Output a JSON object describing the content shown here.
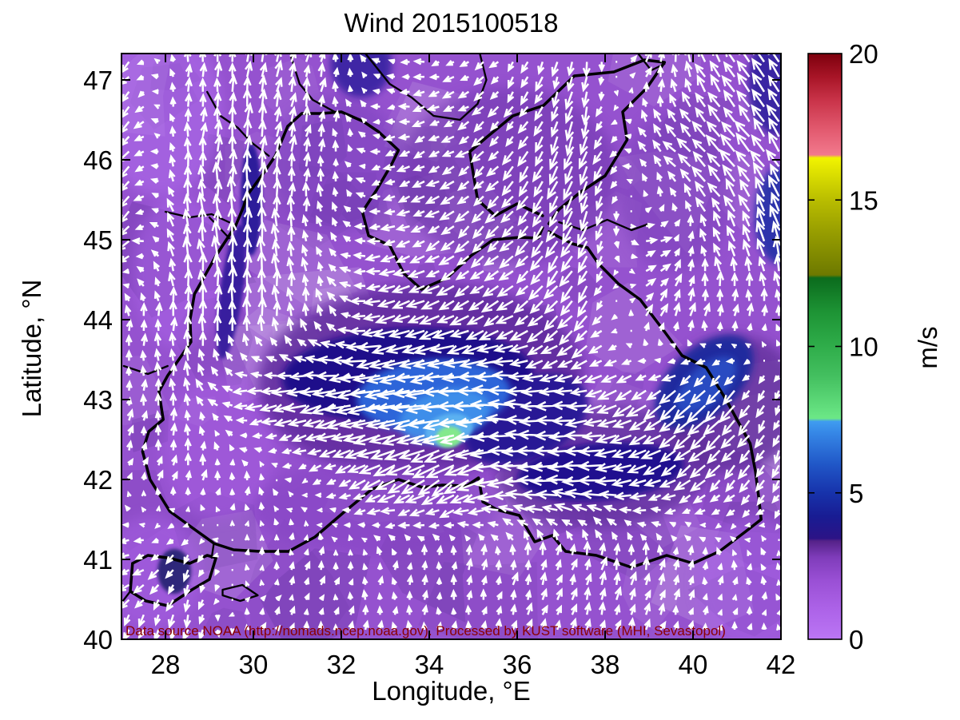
{
  "title": "Wind 2015100518",
  "axes": {
    "xlabel": "Longitude, °E",
    "ylabel": "Latitude, °N",
    "x_ticks": [
      28,
      30,
      32,
      34,
      36,
      38,
      40,
      42
    ],
    "y_ticks": [
      40,
      41,
      42,
      43,
      44,
      45,
      46,
      47
    ],
    "x_range": [
      27,
      42
    ],
    "y_range": [
      40,
      47.33
    ]
  },
  "annotation": {
    "text": "Data source NOAA (http://nomads.ncep.noaa.gov). Processed by KUST software (MHI, Sevastopol)",
    "color": "#8b0000"
  },
  "colorbar": {
    "label": "m/s",
    "ticks": [
      0,
      5,
      10,
      15,
      20
    ],
    "min": 0,
    "max": 20,
    "stops": [
      [
        0.0,
        "#bb76f5"
      ],
      [
        0.05,
        "#ad63e8"
      ],
      [
        0.1,
        "#9a50d5"
      ],
      [
        0.14,
        "#7f3cba"
      ],
      [
        0.168,
        "#542288"
      ],
      [
        0.172,
        "#2c1386"
      ],
      [
        0.21,
        "#181c93"
      ],
      [
        0.25,
        "#1733ab"
      ],
      [
        0.3,
        "#2158c8"
      ],
      [
        0.35,
        "#3585e5"
      ],
      [
        0.372,
        "#3f9cf0"
      ],
      [
        0.377,
        "#6ce887"
      ],
      [
        0.45,
        "#43bf5f"
      ],
      [
        0.5,
        "#2fad4a"
      ],
      [
        0.56,
        "#1d9334"
      ],
      [
        0.617,
        "#0b6b1d"
      ],
      [
        0.622,
        "#6d7900"
      ],
      [
        0.7,
        "#9aa000"
      ],
      [
        0.75,
        "#b9bd00"
      ],
      [
        0.8,
        "#e0e300"
      ],
      [
        0.822,
        "#f2f400"
      ],
      [
        0.827,
        "#f2798d"
      ],
      [
        0.87,
        "#e25a6f"
      ],
      [
        0.92,
        "#c93349"
      ],
      [
        0.96,
        "#a81527"
      ],
      [
        1.0,
        "#7d000d"
      ]
    ]
  },
  "chart_data": {
    "type": "quiver+filled-contour wind map, Black Sea region",
    "units": "m/s",
    "background_color": "#9552cf",
    "wind_grid": {
      "lons": [
        27,
        28.5,
        30,
        31.5,
        33,
        34.5,
        36,
        37.5,
        39,
        40.5,
        42
      ],
      "lats": [
        40.3,
        41,
        42,
        43,
        44,
        45,
        46,
        47.2
      ],
      "u": [
        [
          -1.0,
          -0.5,
          0.3,
          0.3,
          0.0,
          0.0,
          0.5,
          0.5,
          0.5,
          0.2,
          0.0
        ],
        [
          -2.0,
          -1.0,
          0.2,
          0.3,
          0.0,
          0.2,
          0.5,
          0.5,
          0.3,
          0.0,
          -0.3
        ],
        [
          0.5,
          0.5,
          0.0,
          -1.0,
          -3.0,
          -4.0,
          -4.5,
          -4.5,
          -3.0,
          -2.0,
          -1.0
        ],
        [
          0.5,
          -0.5,
          -2.5,
          -4.0,
          -5.5,
          -6.0,
          -4.0,
          -3.0,
          -3.0,
          -3.0,
          -0.5
        ],
        [
          0.0,
          0.0,
          0.0,
          -0.5,
          -3.0,
          -3.0,
          -2.5,
          -2.0,
          1.0,
          0.5,
          0.0
        ],
        [
          -2.0,
          -0.5,
          0.0,
          -0.5,
          -2.0,
          -2.0,
          -2.0,
          -1.5,
          2.0,
          -1.0,
          -1.0
        ],
        [
          -2.0,
          0.0,
          0.3,
          0.3,
          -1.5,
          -2.0,
          -1.5,
          -1.0,
          -1.5,
          -2.5,
          -2.0
        ],
        [
          -1.5,
          0.0,
          0.5,
          0.5,
          -1.0,
          -1.5,
          -1.0,
          -0.5,
          1.0,
          -1.5,
          -2.0
        ]
      ],
      "v": [
        [
          -1.5,
          -2.0,
          0.8,
          1.0,
          1.2,
          1.2,
          1.5,
          1.8,
          1.5,
          1.0,
          0.8
        ],
        [
          -0.5,
          -1.5,
          0.8,
          1.0,
          1.2,
          1.5,
          1.8,
          2.0,
          1.8,
          1.2,
          0.8
        ],
        [
          1.0,
          1.5,
          1.0,
          -0.5,
          -1.5,
          -2.5,
          -0.5,
          0.0,
          -1.0,
          -2.0,
          -2.0
        ],
        [
          1.5,
          2.0,
          -0.8,
          -1.0,
          -1.0,
          -0.5,
          0.5,
          -0.5,
          -2.0,
          -3.0,
          -1.5
        ],
        [
          1.5,
          2.5,
          3.0,
          2.0,
          -0.8,
          -1.2,
          -1.5,
          -2.5,
          2.0,
          2.0,
          1.5
        ],
        [
          -2.0,
          3.0,
          3.5,
          1.5,
          -0.5,
          -1.5,
          -2.0,
          -3.0,
          0.5,
          2.0,
          3.5
        ],
        [
          -2.5,
          2.5,
          3.0,
          2.0,
          -0.5,
          -1.0,
          -2.0,
          -3.5,
          1.5,
          2.5,
          3.0
        ],
        [
          -2.0,
          2.0,
          2.5,
          2.0,
          0.5,
          -0.5,
          -1.5,
          -2.5,
          2.0,
          2.5,
          3.0
        ]
      ]
    },
    "field_features": [
      {
        "lon": 27.9,
        "lat": 46.6,
        "rx": 1.4,
        "ry": 1.05,
        "rot": 0,
        "color": "#b26ff0",
        "opacity": 0.5,
        "blur": "lg"
      },
      {
        "lon": 28.3,
        "lat": 44.6,
        "rx": 1.05,
        "ry": 0.95,
        "rot": 0,
        "color": "#ae67ec",
        "opacity": 0.45,
        "blur": "lg"
      },
      {
        "lon": 27.7,
        "lat": 40.85,
        "rx": 1.15,
        "ry": 0.7,
        "rot": 0,
        "color": "#aa64e8",
        "opacity": 0.45,
        "blur": "lg"
      },
      {
        "lon": 41.4,
        "lat": 40.7,
        "rx": 1.3,
        "ry": 0.85,
        "rot": 0,
        "color": "#a862e8",
        "opacity": 0.5,
        "blur": "lg"
      },
      {
        "lon": 29.2,
        "lat": 42.4,
        "rx": 1.3,
        "ry": 0.9,
        "rot": 0,
        "color": "#a75fe2",
        "opacity": 0.5,
        "blur": "lg"
      },
      {
        "lon": 33.8,
        "lat": 43.25,
        "rx": 3.7,
        "ry": 1.2,
        "rot": -3,
        "color": "#5e2b9c",
        "opacity": 0.85,
        "blur": "lg"
      },
      {
        "lon": 38.0,
        "lat": 42.15,
        "rx": 2.5,
        "ry": 0.75,
        "rot": -5,
        "color": "#64309f",
        "opacity": 0.8,
        "blur": "lg"
      },
      {
        "lon": 35.8,
        "lat": 45.8,
        "rx": 2.5,
        "ry": 1.1,
        "rot": 0,
        "color": "#7138af",
        "opacity": 0.6,
        "blur": "lg"
      },
      {
        "lon": 40.9,
        "lat": 42.95,
        "rx": 1.6,
        "ry": 0.85,
        "rot": -42,
        "color": "#5e2f98",
        "opacity": 0.75,
        "blur": "lg"
      },
      {
        "lon": 31.9,
        "lat": 45.95,
        "rx": 1.5,
        "ry": 0.85,
        "rot": 0,
        "color": "#7c42be",
        "opacity": 0.55,
        "blur": "lg"
      },
      {
        "lon": 32.8,
        "lat": 41.65,
        "rx": 2.8,
        "ry": 0.6,
        "rot": 0,
        "color": "#8343c2",
        "opacity": 0.5,
        "blur": "lg"
      },
      {
        "lon": 39.6,
        "lat": 45.6,
        "rx": 1.3,
        "ry": 1.0,
        "rot": 0,
        "color": "#7940b8",
        "opacity": 0.5,
        "blur": "lg"
      },
      {
        "lon": 33.5,
        "lat": 43.3,
        "rx": 2.85,
        "ry": 0.6,
        "rot": -2,
        "color": "#1b0e8a",
        "opacity": 0.97,
        "blur": "md"
      },
      {
        "lon": 36.2,
        "lat": 42.75,
        "rx": 1.5,
        "ry": 0.5,
        "rot": -25,
        "color": "#201394",
        "opacity": 0.9,
        "blur": "md"
      },
      {
        "lon": 37.9,
        "lat": 42.1,
        "rx": 1.9,
        "ry": 0.36,
        "rot": -5,
        "color": "#1d118e",
        "opacity": 0.95,
        "blur": "md"
      },
      {
        "lon": 40.25,
        "lat": 43.22,
        "rx": 1.35,
        "ry": 0.42,
        "rot": -42,
        "color": "#1f2b9e",
        "opacity": 0.95,
        "blur": "md"
      },
      {
        "lon": 40.3,
        "lat": 43.18,
        "rx": 0.85,
        "ry": 0.23,
        "rot": -42,
        "color": "#2b50c6",
        "opacity": 0.9,
        "blur": "md"
      },
      {
        "lon": 41.95,
        "lat": 45.3,
        "rx": 0.55,
        "ry": 0.6,
        "rot": 0,
        "color": "#1e2da5",
        "opacity": 0.85,
        "blur": "md"
      },
      {
        "lon": 41.9,
        "lat": 46.95,
        "rx": 0.65,
        "ry": 0.65,
        "rot": 0,
        "color": "#2b1c9b",
        "opacity": 0.85,
        "blur": "md"
      },
      {
        "lon": 32.45,
        "lat": 47.2,
        "rx": 0.7,
        "ry": 0.42,
        "rot": 0,
        "color": "#2b1c9b",
        "opacity": 0.8,
        "blur": "md"
      },
      {
        "lon": 29.95,
        "lat": 45.5,
        "rx": 0.24,
        "ry": 0.7,
        "rot": 0,
        "color": "#241495",
        "opacity": 0.9,
        "blur": "sm"
      },
      {
        "lon": 29.5,
        "lat": 44.35,
        "rx": 0.26,
        "ry": 0.85,
        "rot": 8,
        "color": "#2a1798",
        "opacity": 0.85,
        "blur": "sm"
      },
      {
        "lon": 28.2,
        "lat": 40.85,
        "rx": 0.38,
        "ry": 0.28,
        "rot": 0,
        "color": "#232070",
        "opacity": 0.9,
        "blur": "sm"
      },
      {
        "lon": 34.1,
        "lat": 43.05,
        "rx": 1.75,
        "ry": 0.45,
        "rot": -4,
        "color": "#2d6ade",
        "opacity": 0.95,
        "blur": "md"
      },
      {
        "lon": 34.35,
        "lat": 42.8,
        "rx": 1.05,
        "ry": 0.32,
        "rot": -14,
        "color": "#4193ec",
        "opacity": 0.9,
        "blur": "md"
      },
      {
        "lon": 34.45,
        "lat": 42.62,
        "rx": 0.55,
        "ry": 0.2,
        "rot": -14,
        "color": "#5fb5f2",
        "opacity": 0.9,
        "blur": "sm"
      },
      {
        "lon": 34.45,
        "lat": 42.53,
        "rx": 0.3,
        "ry": 0.13,
        "rot": -10,
        "color": "#84e98c",
        "opacity": 1,
        "blur": "sm"
      }
    ],
    "coastlines": {
      "west_north_crimea": [
        [
          29.08,
          41.21
        ],
        [
          28.6,
          41.4
        ],
        [
          28.1,
          41.6
        ],
        [
          27.65,
          42.0
        ],
        [
          27.48,
          42.35
        ],
        [
          27.62,
          42.6
        ],
        [
          27.95,
          42.75
        ],
        [
          27.85,
          43.1
        ],
        [
          28.05,
          43.3
        ],
        [
          28.58,
          43.72
        ],
        [
          28.56,
          44.0
        ],
        [
          28.66,
          44.32
        ],
        [
          29.15,
          44.8
        ],
        [
          29.6,
          45.18
        ],
        [
          29.78,
          45.42
        ],
        [
          29.85,
          45.55
        ],
        [
          30.25,
          45.85
        ],
        [
          30.5,
          46.05
        ],
        [
          30.78,
          46.42
        ],
        [
          31.1,
          46.58
        ],
        [
          31.55,
          46.58
        ],
        [
          32.0,
          46.6
        ],
        [
          32.5,
          46.48
        ],
        [
          32.85,
          46.35
        ],
        [
          33.3,
          46.12
        ],
        [
          33.15,
          45.95
        ],
        [
          32.8,
          45.62
        ],
        [
          32.48,
          45.35
        ],
        [
          32.62,
          45.05
        ],
        [
          33.1,
          44.93
        ],
        [
          33.42,
          44.58
        ],
        [
          33.82,
          44.38
        ],
        [
          34.4,
          44.52
        ],
        [
          34.95,
          44.8
        ],
        [
          35.45,
          45.0
        ],
        [
          36.05,
          45.03
        ],
        [
          36.48,
          45.02
        ],
        [
          36.58,
          45.15
        ]
      ],
      "azov": [
        [
          36.58,
          45.3
        ],
        [
          36.0,
          45.45
        ],
        [
          35.5,
          45.3
        ],
        [
          35.1,
          45.5
        ],
        [
          34.92,
          46.1
        ],
        [
          35.3,
          46.28
        ],
        [
          35.9,
          46.55
        ],
        [
          36.6,
          46.68
        ],
        [
          37.3,
          47.05
        ],
        [
          38.2,
          47.1
        ],
        [
          38.9,
          47.25
        ],
        [
          39.35,
          47.22
        ],
        [
          38.95,
          46.9
        ],
        [
          38.4,
          46.6
        ],
        [
          38.5,
          46.25
        ],
        [
          38.0,
          45.8
        ],
        [
          37.45,
          45.6
        ],
        [
          36.95,
          45.38
        ],
        [
          36.72,
          45.2
        ]
      ],
      "caucasus_turkey": [
        [
          36.72,
          45.1
        ],
        [
          37.25,
          44.95
        ],
        [
          37.6,
          44.9
        ],
        [
          37.85,
          44.7
        ],
        [
          38.3,
          44.45
        ],
        [
          38.8,
          44.25
        ],
        [
          39.35,
          43.85
        ],
        [
          39.75,
          43.55
        ],
        [
          40.3,
          43.4
        ],
        [
          40.75,
          43.0
        ],
        [
          41.05,
          42.7
        ],
        [
          41.3,
          42.45
        ],
        [
          41.42,
          42.1
        ],
        [
          41.5,
          41.75
        ],
        [
          41.55,
          41.5
        ],
        [
          41.2,
          41.35
        ],
        [
          40.6,
          41.1
        ],
        [
          40.0,
          40.95
        ],
        [
          39.4,
          41.05
        ],
        [
          38.6,
          40.9
        ],
        [
          37.8,
          41.05
        ],
        [
          37.1,
          41.1
        ],
        [
          36.8,
          41.3
        ],
        [
          36.4,
          41.22
        ],
        [
          36.05,
          41.55
        ],
        [
          35.55,
          41.62
        ],
        [
          35.22,
          41.72
        ],
        [
          35.12,
          42.02
        ],
        [
          34.85,
          41.92
        ],
        [
          34.3,
          41.93
        ],
        [
          33.85,
          41.9
        ],
        [
          33.3,
          42.0
        ],
        [
          32.7,
          41.88
        ],
        [
          32.08,
          41.6
        ],
        [
          31.4,
          41.28
        ],
        [
          30.8,
          41.1
        ],
        [
          30.15,
          41.1
        ],
        [
          29.55,
          41.12
        ],
        [
          29.1,
          41.2
        ]
      ],
      "marmara": [
        [
          27.25,
          40.95
        ],
        [
          27.6,
          41.05
        ],
        [
          28.05,
          41.02
        ],
        [
          28.55,
          40.95
        ],
        [
          28.95,
          41.05
        ],
        [
          29.15,
          41.02
        ],
        [
          29.0,
          40.75
        ],
        [
          28.6,
          40.62
        ],
        [
          28.05,
          40.42
        ],
        [
          27.55,
          40.48
        ],
        [
          27.2,
          40.6
        ],
        [
          27.25,
          40.95
        ]
      ],
      "dardanelles": [
        [
          27.2,
          40.6
        ],
        [
          26.95,
          40.42
        ]
      ],
      "iznik": [
        [
          29.3,
          40.62
        ],
        [
          29.75,
          40.68
        ],
        [
          30.1,
          40.55
        ],
        [
          29.7,
          40.48
        ],
        [
          29.3,
          40.55
        ],
        [
          29.3,
          40.62
        ]
      ],
      "bosphorus": [
        [
          29.1,
          41.2
        ],
        [
          29.05,
          41.02
        ]
      ],
      "danube": [
        [
          28.0,
          45.35
        ],
        [
          28.55,
          45.28
        ],
        [
          29.05,
          45.32
        ],
        [
          29.6,
          45.18
        ]
      ],
      "danube_branch": [
        [
          29.0,
          45.28
        ],
        [
          29.45,
          45.02
        ]
      ],
      "dniester": [
        [
          28.95,
          46.85
        ],
        [
          29.25,
          46.55
        ],
        [
          29.65,
          46.4
        ],
        [
          29.95,
          46.22
        ],
        [
          30.35,
          46.05
        ]
      ],
      "southern_bug": [
        [
          30.85,
          47.3
        ],
        [
          31.05,
          46.95
        ],
        [
          31.35,
          46.75
        ],
        [
          31.85,
          46.6
        ]
      ],
      "dnieper": [
        [
          32.55,
          47.33
        ],
        [
          33.1,
          46.95
        ],
        [
          33.6,
          46.78
        ],
        [
          34.1,
          46.55
        ],
        [
          34.7,
          46.5
        ],
        [
          35.1,
          46.7
        ],
        [
          35.3,
          47.0
        ],
        [
          35.15,
          47.33
        ]
      ],
      "don": [
        [
          38.75,
          47.33
        ],
        [
          39.05,
          47.12
        ],
        [
          39.35,
          47.2
        ]
      ],
      "kuban": [
        [
          36.95,
          45.22
        ],
        [
          37.5,
          45.12
        ],
        [
          38.05,
          45.25
        ],
        [
          38.6,
          45.12
        ],
        [
          39.0,
          45.2
        ]
      ],
      "bulgarian_river": [
        [
          27.05,
          43.42
        ],
        [
          27.6,
          43.32
        ],
        [
          28.05,
          43.42
        ]
      ]
    }
  }
}
